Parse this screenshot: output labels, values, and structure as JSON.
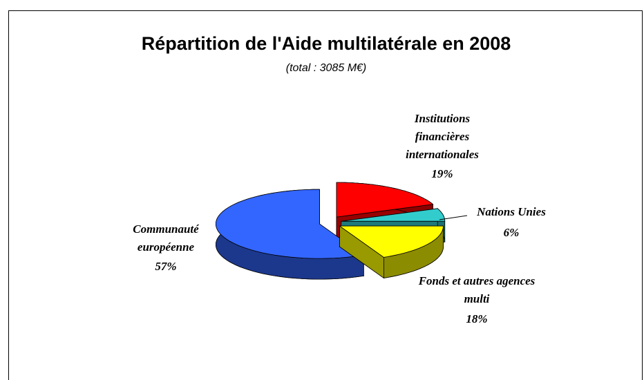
{
  "chart_data": {
    "type": "pie",
    "title": "Répartition de l'Aide multilatérale en 2008",
    "subtitle": "(total : 3085 M€)",
    "categories": [
      "Institutions financières internationales",
      "Nations Unies",
      "Fonds et autres agences multi",
      "Communauté européenne"
    ],
    "values": [
      19,
      6,
      18,
      57
    ],
    "value_labels": [
      "19%",
      "6%",
      "18%",
      "57%"
    ],
    "colors": [
      "#ff0000",
      "#33cccc",
      "#ffff00",
      "#3366ff"
    ]
  }
}
